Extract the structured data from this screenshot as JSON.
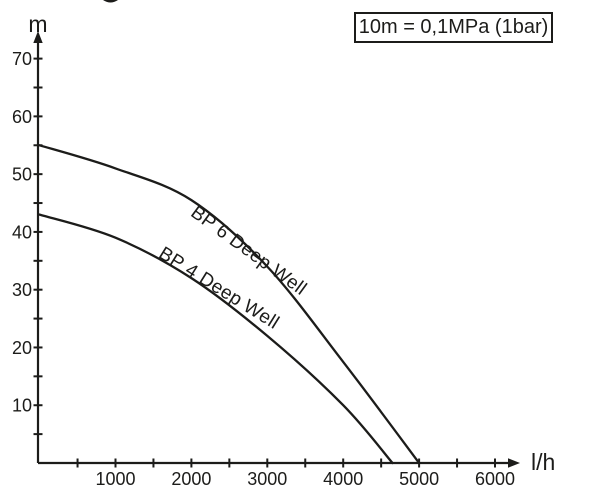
{
  "page": {
    "background_color": "#ffffff",
    "ink_color": "#1c1c1a"
  },
  "legend": {
    "text": "10m = 0,1MPa (1bar)"
  },
  "chart_data": {
    "type": "line",
    "title": "",
    "xlabel": "l/h",
    "ylabel": "m",
    "xlim": [
      0,
      6300
    ],
    "ylim": [
      0,
      73
    ],
    "grid": false,
    "legend_position": "top-right",
    "annotation": "10m = 0,1MPa (1bar)",
    "x_axis": {
      "unit_label": "l/h",
      "tick_step": 500,
      "tick_max": 6000,
      "labels": [
        "1000",
        "2000",
        "3000",
        "4000",
        "5000",
        "6000"
      ]
    },
    "y_axis": {
      "unit_label": "m",
      "tick_step": 5,
      "tick_max": 70,
      "labels": [
        "10",
        "20",
        "30",
        "40",
        "50",
        "60",
        "70"
      ]
    },
    "series": [
      {
        "name": "BP 6 Deep Well",
        "points": [
          [
            0,
            55
          ],
          [
            1000,
            51
          ],
          [
            2000,
            45.5
          ],
          [
            3000,
            34
          ],
          [
            4000,
            17.5
          ],
          [
            5000,
            0
          ]
        ]
      },
      {
        "name": "BP 4 Deep Well",
        "points": [
          [
            0,
            43
          ],
          [
            1000,
            39
          ],
          [
            2000,
            32
          ],
          [
            3000,
            22
          ],
          [
            4000,
            10
          ],
          [
            4650,
            0
          ]
        ]
      }
    ]
  }
}
